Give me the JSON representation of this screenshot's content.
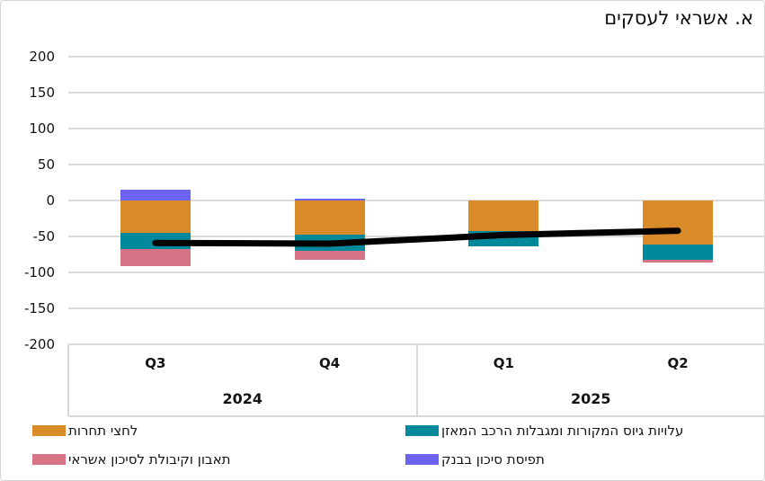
{
  "title": "א. אשראי לעסקים",
  "chart_data": {
    "type": "bar",
    "subtype": "stacked-bars-with-net-line",
    "title": "א. אשראי לעסקים",
    "categories": [
      "Q3",
      "Q4",
      "Q1",
      "Q2"
    ],
    "year_groups": [
      {
        "label": "2024",
        "quarter_count": 2
      },
      {
        "label": "2025",
        "quarter_count": 2
      }
    ],
    "series": [
      {
        "name": "לחצי תחרות",
        "color": "#D98B29",
        "values": [
          -45,
          -48,
          -42,
          -61
        ]
      },
      {
        "name": "עלויות גיוס המקורות ומגבלות הרכב המאזן",
        "color": "#00899B",
        "values": [
          -22,
          -22,
          -22,
          -21
        ]
      },
      {
        "name": "תאבון וקיבולת לסיכון אשראי",
        "color": "#D67486",
        "values": [
          -24,
          -13,
          0,
          -4
        ]
      },
      {
        "name": "תפיסת סיכון בבנק",
        "color": "#6E62F0",
        "values": [
          15,
          3,
          0,
          0
        ]
      }
    ],
    "line": {
      "color": "#000000",
      "values": [
        -59,
        -60,
        -48,
        -42
      ]
    },
    "ylim": [
      -200,
      200
    ],
    "ytick_step": 50,
    "yticks": [
      200,
      150,
      100,
      50,
      0,
      -50,
      -100,
      -150,
      -200
    ],
    "grid": true,
    "legend_position": "bottom",
    "gridline_color": "#DBDBDB"
  }
}
